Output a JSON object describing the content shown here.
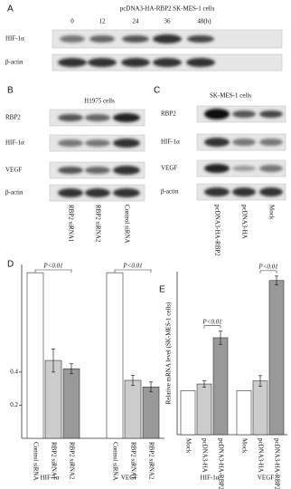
{
  "panel_labels": [
    "A",
    "B",
    "C",
    "D",
    "E"
  ],
  "blot_a": {
    "title": "pcDNA3-HA-RBP2 SK-MES-1 cells",
    "lanes": [
      "0",
      "12",
      "24",
      "36",
      "48(h)"
    ],
    "rows": [
      "HIF-1α",
      "β-actin"
    ]
  },
  "blot_b": {
    "title": "H1975 cells",
    "rows": [
      "RBP2",
      "HIF-1α",
      "VEGF",
      "β-actin"
    ],
    "lanes": [
      "RBP2 siRNA1",
      "RBP2 siRNA2",
      "Control siRNA"
    ]
  },
  "blot_c": {
    "title": "SK-MES-1 cells",
    "rows": [
      "RBP2",
      "HIF-1α",
      "VEGF",
      "β-actin"
    ],
    "lanes": [
      "pcDNA3-HA-RBP2",
      "pcDNA3-HA",
      "Mock"
    ]
  },
  "chart_data": [
    {
      "type": "bar",
      "groups": [
        "HIF-1α",
        "VEGF"
      ],
      "series": [
        {
          "name": "Control siRNA",
          "color": "#ffffff",
          "values": [
            1,
            1
          ],
          "errors": [
            null,
            null
          ]
        },
        {
          "name": "RBP2 siRNA1",
          "color": "#cccccc",
          "values": [
            0.47,
            0.35
          ],
          "errors": [
            0.07,
            0.03
          ]
        },
        {
          "name": "RBP2 siRNA2",
          "color": "#999999",
          "values": [
            0.42,
            0.31
          ],
          "errors": [
            0.03,
            0.03
          ]
        }
      ],
      "ylim": [
        0,
        1.05
      ],
      "yticks": [
        0.2,
        0.4
      ],
      "annotations": [
        "P<0.01",
        "P<0.01"
      ]
    },
    {
      "type": "bar",
      "ylabel": "Relative mRNA level (SK-MES-1 cells)",
      "groups": [
        "HIF-1α",
        "VEGF"
      ],
      "series": [
        {
          "name": "Mock",
          "color": "#ffffff",
          "values": [
            1,
            1
          ],
          "errors": [
            null,
            null
          ]
        },
        {
          "name": "pcDNA3-HA",
          "color": "#cccccc",
          "values": [
            1.15,
            1.22
          ],
          "errors": [
            0.07,
            0.12
          ]
        },
        {
          "name": "pcDNA3-HA-RBP2",
          "color": "#999999",
          "values": [
            2.2,
            3.5
          ],
          "errors": [
            0.15,
            0.1
          ]
        }
      ],
      "ylim": [
        0,
        3.7
      ],
      "annotations": [
        "P<0.01",
        "P<0.01"
      ]
    }
  ]
}
